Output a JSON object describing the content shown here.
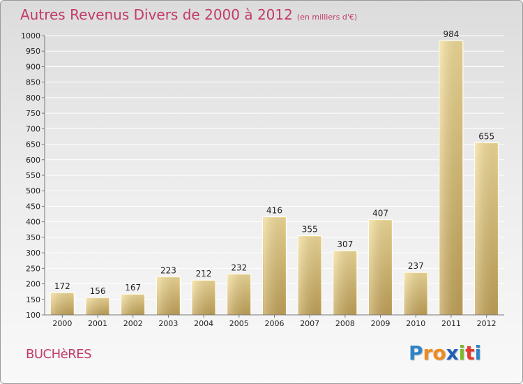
{
  "title": "Autres Revenus Divers de 2000 à 2012",
  "unit": "(en milliers d'€)",
  "commune": "BUCHèRES",
  "logo": {
    "letters": [
      "P",
      "r",
      "o",
      "x",
      "i",
      "t",
      "i"
    ],
    "colors": [
      "#2f84c8",
      "#f08a1d",
      "#f08a1d",
      "#1f5fb8",
      "#7cb82f",
      "#e23b2e",
      "#2f84c8"
    ]
  },
  "colors": {
    "title": "#c23a68",
    "bar_light": "#f2da94",
    "bar_dark": "#c4a458",
    "grid": "#ffffff"
  },
  "chart_data": {
    "type": "bar",
    "categories": [
      "2000",
      "2001",
      "2002",
      "2003",
      "2004",
      "2005",
      "2006",
      "2007",
      "2008",
      "2009",
      "2010",
      "2011",
      "2012"
    ],
    "values": [
      172,
      156,
      167,
      223,
      212,
      232,
      416,
      355,
      307,
      407,
      237,
      984,
      655
    ],
    "ylim": [
      100,
      1000
    ],
    "yticks": [
      100,
      150,
      200,
      250,
      300,
      350,
      400,
      450,
      500,
      550,
      600,
      650,
      700,
      750,
      800,
      850,
      900,
      950,
      1000
    ],
    "grid": true
  }
}
